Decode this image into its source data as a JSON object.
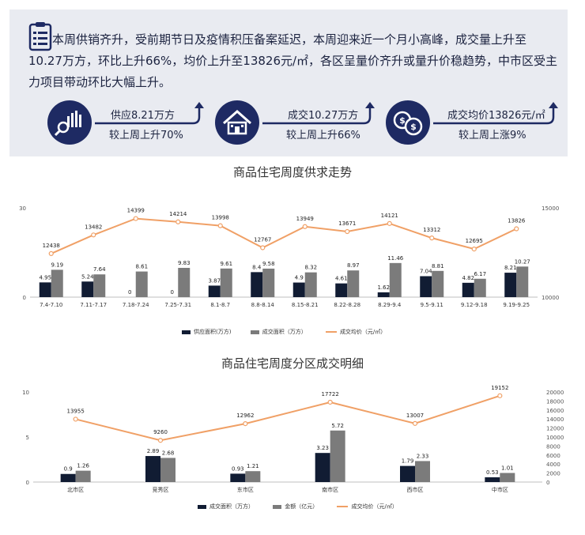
{
  "summary": {
    "text": "本周供销齐升，受前期节日及疫情积压备案延迟，本周迎来近一个月小高峰，成交量上升至10.27万方，环比上升66%，均价上升至13826元/㎡，各区呈量价齐升或量升价稳趋势，中市区受主力项目带动环比大幅上升。",
    "stats": [
      {
        "icon": "chart-magnifier-icon",
        "line1": "供应8.21万方",
        "line2": "较上周上升70%"
      },
      {
        "icon": "house-icon",
        "line1": "成交10.27万方",
        "line2": "较上周上升66%"
      },
      {
        "icon": "coins-icon",
        "line1": "成交均价13826元/㎡",
        "line2": "较上周上涨9%"
      }
    ]
  },
  "colors": {
    "dark_bar": "#111c33",
    "grey_bar": "#7b7b7b",
    "line": "#f0a066",
    "accent": "#1e2a63"
  },
  "chart_data": [
    {
      "type": "bar",
      "title": "商品住宅周度供求走势",
      "categories": [
        "7.4-7.10",
        "7.11-7.17",
        "7.18-7.24",
        "7.25-7.31",
        "8.1-8.7",
        "8.8-8.14",
        "8.15-8.21",
        "8.22-8.28",
        "8.29-9.4",
        "9.5-9.11",
        "9.12-9.18",
        "9.19-9.25"
      ],
      "series": [
        {
          "name": "供应面积(万方)",
          "kind": "bar",
          "values": [
            4.95,
            5.24,
            0,
            0,
            3.87,
            8.4,
            4.9,
            4.61,
            1.62,
            7.04,
            4.82,
            8.21
          ]
        },
        {
          "name": "成交面积（万方）",
          "kind": "bar",
          "values": [
            9.19,
            7.64,
            8.61,
            9.83,
            9.61,
            9.58,
            8.32,
            8.97,
            11.46,
            8.81,
            6.17,
            10.27
          ]
        },
        {
          "name": "成交均价（元/㎡）",
          "kind": "line",
          "axis": "right",
          "values": [
            12438,
            13482,
            14399,
            14214,
            13998,
            12767,
            13949,
            13671,
            14121,
            13312,
            12695,
            13826
          ]
        }
      ],
      "ylim": [
        0,
        30
      ],
      "y2lim": [
        10000,
        15000
      ],
      "yticks": [
        "0",
        "30"
      ],
      "y2ticks": [
        "10000",
        "15000"
      ],
      "legend": "bottom"
    },
    {
      "type": "bar",
      "title": "商品住宅周度分区成交明细",
      "categories": [
        "北市区",
        "竞秀区",
        "东市区",
        "南市区",
        "西市区",
        "中市区"
      ],
      "series": [
        {
          "name": "成交面积（万方）",
          "kind": "bar",
          "values": [
            0.9,
            2.89,
            0.93,
            3.23,
            1.79,
            0.53
          ]
        },
        {
          "name": "金额（亿元）",
          "kind": "bar",
          "values": [
            1.26,
            2.68,
            1.21,
            5.72,
            2.33,
            1.01
          ]
        },
        {
          "name": "成交均价（元/㎡）",
          "kind": "line",
          "axis": "right",
          "values": [
            13955,
            9260,
            12962,
            17722,
            13007,
            19152
          ]
        }
      ],
      "ylim": [
        0,
        10
      ],
      "y2lim": [
        0,
        20000
      ],
      "yticks": [
        "0",
        "5",
        "10"
      ],
      "y2ticks": [
        "0",
        "2000",
        "4000",
        "6000",
        "8000",
        "10000",
        "12000",
        "14000",
        "16000",
        "18000",
        "20000"
      ],
      "legend": "bottom"
    }
  ]
}
